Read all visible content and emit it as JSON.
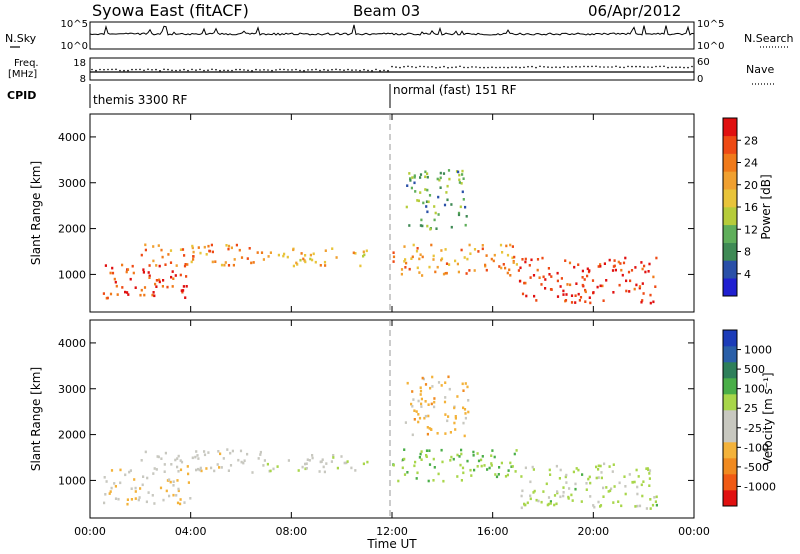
{
  "header": {
    "station": "Syowa East (fitACF)",
    "beam": "Beam 03",
    "date": "06/Apr/2012"
  },
  "top_panels": {
    "nsky_label": "N.Sky",
    "nsearch_label": "N.Search",
    "noise_ticks": [
      "10^5",
      "10^0"
    ],
    "freq_label_1": "Freq.",
    "freq_label_2": "[MHz]",
    "freq_ticks": [
      "18",
      "8"
    ],
    "nave_label": "Nave",
    "nave_ticks": [
      "60",
      "0"
    ],
    "cpid_label": "CPID",
    "cpid_modes": [
      {
        "name": "themis 3300 RF",
        "start_hour": 0
      },
      {
        "name": "normal (fast) 151 RF",
        "start_hour": 12
      }
    ]
  },
  "colors": {
    "power_scale": [
      "#2020d0",
      "#2a50a8",
      "#3f8a55",
      "#5fae5a",
      "#b6cc3a",
      "#e8c43a",
      "#f0a030",
      "#f07a1a",
      "#ee4a14",
      "#e01010"
    ],
    "velocity_scale": [
      "#e01010",
      "#f05a14",
      "#f08a20",
      "#f3b23a",
      "#c8c8c0",
      "#c8c8c0",
      "#a8d64a",
      "#4aae48",
      "#2e7f5a",
      "#2a5fa8",
      "#1c3cb8"
    ]
  },
  "chart_data": [
    {
      "type": "heatmap",
      "title": "Power",
      "xlabel": "",
      "ylabel": "Slant Range [km]",
      "xlim": [
        0,
        24
      ],
      "ylim": [
        180,
        4500
      ],
      "x_ticks": [
        "00:00",
        "04:00",
        "08:00",
        "12:00",
        "16:00",
        "20:00",
        "00:00"
      ],
      "y_ticks": [
        1000,
        2000,
        3000,
        4000
      ],
      "colorbar": {
        "label": "Power [dB]",
        "ticks": [
          4,
          8,
          12,
          16,
          20,
          24,
          28
        ],
        "range": [
          0,
          30
        ]
      },
      "regions": [
        {
          "x": [
            0.5,
            4
          ],
          "y": [
            500,
            1300
          ],
          "value": 26
        },
        {
          "x": [
            2,
            7
          ],
          "y": [
            1200,
            1700
          ],
          "value": 22
        },
        {
          "x": [
            7,
            11
          ],
          "y": [
            1200,
            1600
          ],
          "value": 18
        },
        {
          "x": [
            12,
            17
          ],
          "y": [
            1000,
            1700
          ],
          "value": 20
        },
        {
          "x": [
            17,
            22.5
          ],
          "y": [
            400,
            1400
          ],
          "value": 27
        },
        {
          "x": [
            12.5,
            15
          ],
          "y": [
            2000,
            3300
          ],
          "value": 10
        }
      ]
    },
    {
      "type": "heatmap",
      "title": "Velocity",
      "xlabel": "Time UT",
      "ylabel": "Slant Range [km]",
      "xlim": [
        0,
        24
      ],
      "ylim": [
        180,
        4500
      ],
      "x_ticks": [
        "00:00",
        "04:00",
        "08:00",
        "12:00",
        "16:00",
        "20:00",
        "00:00"
      ],
      "y_ticks": [
        1000,
        2000,
        3000,
        4000
      ],
      "colorbar": {
        "label": "Velocity [m s⁻¹]",
        "ticks": [
          1000,
          500,
          100,
          25,
          -25,
          -100,
          -500,
          -1000
        ],
        "range": [
          -1200,
          1200
        ]
      },
      "regions": [
        {
          "x": [
            0.5,
            4
          ],
          "y": [
            500,
            1300
          ],
          "value": -300
        },
        {
          "x": [
            2,
            7
          ],
          "y": [
            1200,
            1700
          ],
          "value": -150
        },
        {
          "x": [
            7,
            11
          ],
          "y": [
            1200,
            1600
          ],
          "value": 0
        },
        {
          "x": [
            12,
            17
          ],
          "y": [
            1000,
            1700
          ],
          "value": 300
        },
        {
          "x": [
            17,
            22.5
          ],
          "y": [
            400,
            1400
          ],
          "value": 150
        },
        {
          "x": [
            12.5,
            15
          ],
          "y": [
            2000,
            3300
          ],
          "value": -400
        }
      ]
    }
  ]
}
